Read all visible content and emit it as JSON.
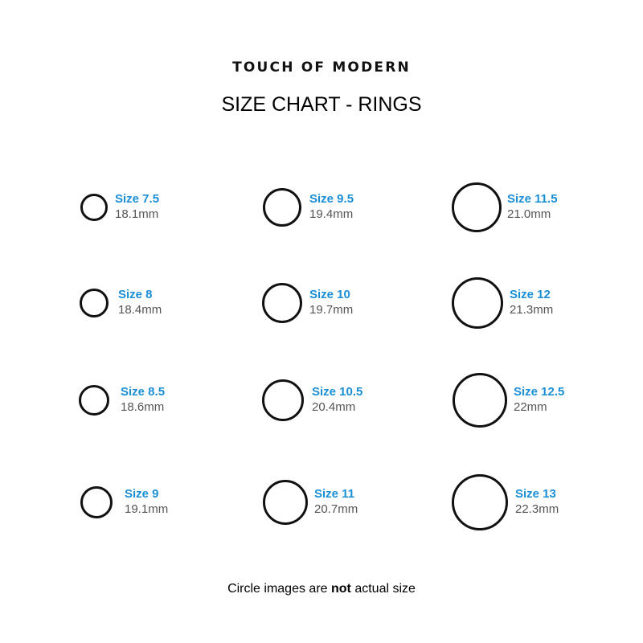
{
  "brand": "TOUCH OF MODERN",
  "title": "SIZE CHART - RINGS",
  "rings": [
    {
      "size": "Size 7.5",
      "mm": "18.1mm"
    },
    {
      "size": "Size 8",
      "mm": "18.4mm"
    },
    {
      "size": "Size 8.5",
      "mm": "18.6mm"
    },
    {
      "size": "Size 9",
      "mm": "19.1mm"
    },
    {
      "size": "Size 9.5",
      "mm": "19.4mm"
    },
    {
      "size": "Size 10",
      "mm": "19.7mm"
    },
    {
      "size": "Size 10.5",
      "mm": "20.4mm"
    },
    {
      "size": "Size 11",
      "mm": "20.7mm"
    },
    {
      "size": "Size 11.5",
      "mm": "21.0mm"
    },
    {
      "size": "Size 12",
      "mm": "21.3mm"
    },
    {
      "size": "Size 12.5",
      "mm": "22mm"
    },
    {
      "size": "Size 13",
      "mm": "22.3mm"
    }
  ],
  "note": {
    "before": "Circle images are ",
    "bold": "not",
    "after": " actual size"
  },
  "colors": {
    "size_label": "#1a8fd6",
    "mm_label": "#555555",
    "ring": "#111111"
  }
}
